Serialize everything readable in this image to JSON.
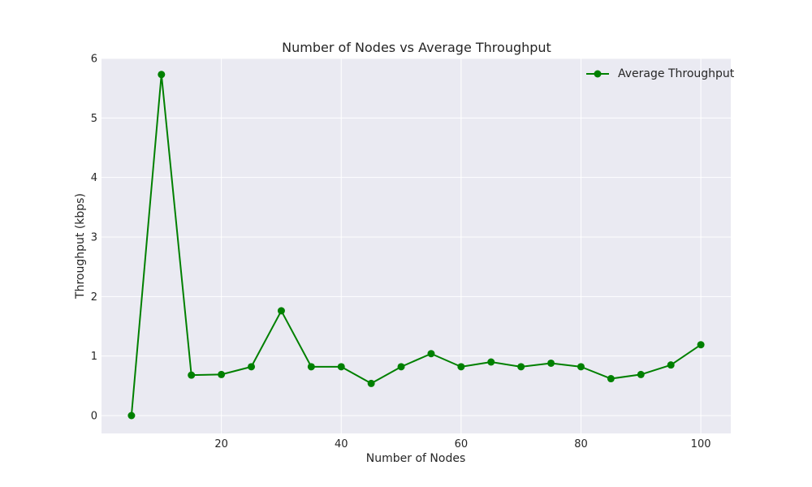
{
  "chart_data": {
    "type": "line",
    "title": "Number of Nodes vs Average Throughput",
    "xlabel": "Number of Nodes",
    "ylabel": "Throughput (kbps)",
    "xlim": [
      0,
      105
    ],
    "ylim": [
      -0.3,
      6.0
    ],
    "xticks": [
      20,
      40,
      60,
      80,
      100
    ],
    "yticks": [
      0,
      1,
      2,
      3,
      4,
      5,
      6
    ],
    "grid": true,
    "legend_position": "top-right",
    "colors": {
      "line": "#008000",
      "plot_bg": "#eaeaf2",
      "grid": "#ffffff"
    },
    "series": [
      {
        "name": "Average Throughput",
        "x": [
          5,
          10,
          15,
          20,
          25,
          30,
          35,
          40,
          45,
          50,
          55,
          60,
          65,
          70,
          75,
          80,
          85,
          90,
          95,
          100
        ],
        "y": [
          0.0,
          5.73,
          0.68,
          0.69,
          0.82,
          1.76,
          0.82,
          0.82,
          0.54,
          0.82,
          1.04,
          0.82,
          0.9,
          0.82,
          0.88,
          0.82,
          0.62,
          0.69,
          0.85,
          1.19
        ]
      }
    ]
  }
}
